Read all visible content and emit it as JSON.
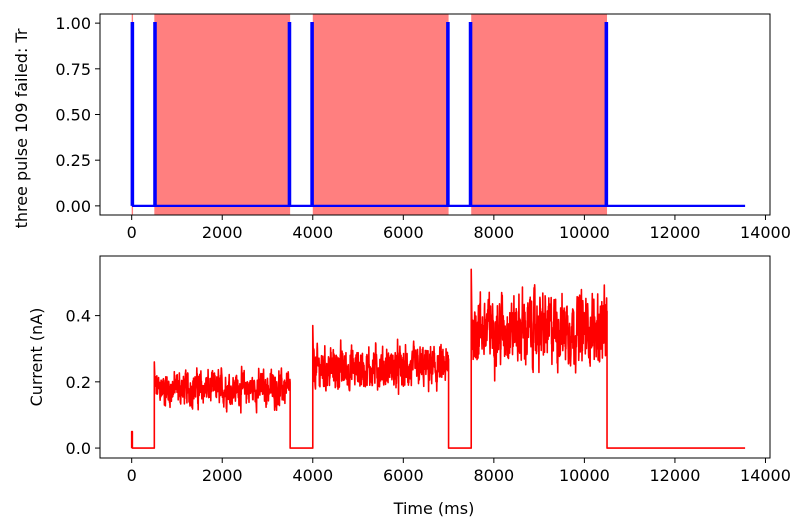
{
  "chart_data": [
    {
      "type": "line",
      "ylabel": "three pulse 109 failed: Tr",
      "xlabel": "",
      "xlim": [
        -700,
        14100
      ],
      "ylim": [
        -0.05,
        1.05
      ],
      "x_ticks": [
        "0",
        "2000",
        "4000",
        "6000",
        "8000",
        "10000",
        "12000",
        "14000"
      ],
      "y_ticks": [
        "0.00",
        "0.25",
        "0.50",
        "0.75",
        "1.00"
      ],
      "x_tick_values": [
        0,
        2000,
        4000,
        6000,
        8000,
        10000,
        12000,
        14000
      ],
      "y_tick_values": [
        0,
        0.25,
        0.5,
        0.75,
        1.0
      ],
      "shaded_regions": [
        {
          "x0": 0,
          "x1": 30
        },
        {
          "x0": 500,
          "x1": 3500
        },
        {
          "x0": 4000,
          "x1": 7000
        },
        {
          "x0": 7500,
          "x1": 10500
        }
      ],
      "shade_color": "#ff7f7f",
      "series": [
        {
          "color": "#0000ff",
          "x": [
            0,
            0,
            30,
            30,
            500,
            500,
            530,
            530,
            3470,
            3470,
            3500,
            3500,
            3970,
            3970,
            4000,
            4000,
            6970,
            6970,
            7000,
            7000,
            7470,
            7470,
            7500,
            7500,
            10470,
            10470,
            10500,
            10500,
            13550
          ],
          "y": [
            0,
            1,
            1,
            0,
            0,
            1,
            1,
            0,
            0,
            1,
            1,
            0,
            0,
            1,
            1,
            0,
            0,
            1,
            1,
            0,
            0,
            1,
            1,
            0,
            0,
            1,
            1,
            0,
            0
          ]
        }
      ]
    },
    {
      "type": "line",
      "ylabel": "Current (nA)",
      "xlabel": "Time (ms)",
      "xlim": [
        -700,
        14100
      ],
      "ylim": [
        -0.03,
        0.58
      ],
      "x_ticks": [
        "0",
        "2000",
        "4000",
        "6000",
        "8000",
        "10000",
        "12000",
        "14000"
      ],
      "y_ticks": [
        "0.0",
        "0.2",
        "0.4"
      ],
      "x_tick_values": [
        0,
        2000,
        4000,
        6000,
        8000,
        10000,
        12000,
        14000
      ],
      "y_tick_values": [
        0,
        0.2,
        0.4
      ],
      "series": [
        {
          "color": "#ff0000",
          "baseline": 0.0,
          "spike": {
            "x": 0,
            "y": 0.05
          },
          "noisy_segments": [
            {
              "x0": 500,
              "x1": 3500,
              "mean": 0.18,
              "amplitude": 0.045,
              "onset_peak": 0.26
            },
            {
              "x0": 4000,
              "x1": 7000,
              "mean": 0.24,
              "amplitude": 0.055,
              "onset_peak": 0.37
            },
            {
              "x0": 7500,
              "x1": 10500,
              "mean": 0.36,
              "amplitude": 0.09,
              "onset_peak": 0.54
            }
          ],
          "x_end": 13550
        }
      ]
    }
  ]
}
